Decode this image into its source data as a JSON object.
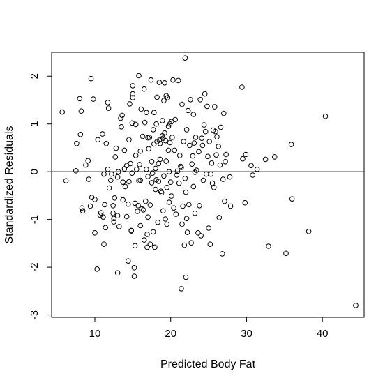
{
  "chart_data": {
    "type": "scatter",
    "title": "",
    "xlabel": "Predicted Body Fat",
    "ylabel": "Standardized Residuals",
    "xlim": [
      4.3,
      45.5
    ],
    "ylim": [
      -3.05,
      2.5
    ],
    "xticks": [
      10,
      20,
      30,
      40
    ],
    "yticks": [
      -3,
      -2,
      -1,
      0,
      1,
      2
    ],
    "reference_line": {
      "type": "hline",
      "y": 0
    },
    "grid": false,
    "point_style": "open-circle",
    "colors": {
      "points": "#000000",
      "axes": "#000000",
      "background": "#ffffff"
    },
    "series": [
      {
        "points": [
          [
            5.7,
            1.25
          ],
          [
            6.2,
            -0.19
          ],
          [
            7.5,
            0.02
          ],
          [
            7.6,
            0.59
          ],
          [
            8.0,
            1.53
          ],
          [
            8.1,
            0.78
          ],
          [
            8.2,
            1.27
          ],
          [
            8.3,
            -0.76
          ],
          [
            8.4,
            -0.82
          ],
          [
            8.8,
            0.14
          ],
          [
            9.1,
            0.23
          ],
          [
            9.2,
            -0.16
          ],
          [
            9.4,
            -0.72
          ],
          [
            9.5,
            1.95
          ],
          [
            9.6,
            -0.54
          ],
          [
            9.8,
            1.52
          ],
          [
            10.0,
            -0.58
          ],
          [
            10.0,
            -1.28
          ],
          [
            10.3,
            -2.04
          ],
          [
            10.4,
            0.67
          ],
          [
            10.7,
            -0.91
          ],
          [
            10.8,
            -0.86
          ],
          [
            11.0,
            0.79
          ],
          [
            11.1,
            -0.95
          ],
          [
            11.2,
            -0.05
          ],
          [
            11.2,
            -1.52
          ],
          [
            11.3,
            -0.69
          ],
          [
            11.4,
            -1.17
          ],
          [
            11.5,
            0.59
          ],
          [
            11.7,
            0.05
          ],
          [
            11.7,
            1.45
          ],
          [
            11.8,
            1.33
          ],
          [
            11.9,
            -0.34
          ],
          [
            12.1,
            -0.18
          ],
          [
            12.2,
            -0.05
          ],
          [
            12.4,
            -0.71
          ],
          [
            12.4,
            -0.87
          ],
          [
            12.5,
            -0.98
          ],
          [
            12.5,
            -1.05
          ],
          [
            12.6,
            -0.55
          ],
          [
            12.7,
            0.31
          ],
          [
            12.8,
            0.49
          ],
          [
            13.0,
            -0.11
          ],
          [
            13.0,
            -2.12
          ],
          [
            13.0,
            -0.92
          ],
          [
            13.1,
            0.0
          ],
          [
            13.2,
            -1.15
          ],
          [
            13.4,
            1.12
          ],
          [
            13.5,
            0.94
          ],
          [
            13.6,
            1.18
          ],
          [
            13.7,
            -0.22
          ],
          [
            13.7,
            -0.59
          ],
          [
            13.9,
            0.45
          ],
          [
            13.9,
            0.06
          ],
          [
            14.0,
            -0.31
          ],
          [
            14.2,
            0.13
          ],
          [
            14.2,
            -0.94
          ],
          [
            14.4,
            -0.68
          ],
          [
            14.4,
            -1.87
          ],
          [
            14.5,
            -0.21
          ],
          [
            14.5,
            0.67
          ],
          [
            14.6,
            1.42
          ],
          [
            14.7,
            0.17
          ],
          [
            14.8,
            -1.23
          ],
          [
            14.8,
            -1.24
          ],
          [
            14.9,
            -0.03
          ],
          [
            14.9,
            1.02
          ],
          [
            15.0,
            1.8
          ],
          [
            15.0,
            1.63
          ],
          [
            15.0,
            1.55
          ],
          [
            15.2,
            -2.01
          ],
          [
            15.2,
            -2.19
          ],
          [
            15.3,
            -0.66
          ],
          [
            15.3,
            -1.55
          ],
          [
            15.4,
            0.34
          ],
          [
            15.4,
            0.99
          ],
          [
            15.5,
            0.05
          ],
          [
            15.6,
            -0.83
          ],
          [
            15.7,
            -0.71
          ],
          [
            15.8,
            2.01
          ],
          [
            15.8,
            -0.19
          ],
          [
            15.9,
            0.15
          ],
          [
            16.0,
            -0.18
          ],
          [
            16.0,
            -1.13
          ],
          [
            16.0,
            0.43
          ],
          [
            16.1,
            1.31
          ],
          [
            16.2,
            -0.78
          ],
          [
            16.3,
            0.74
          ],
          [
            16.4,
            -0.8
          ],
          [
            16.5,
            1.73
          ],
          [
            16.5,
            -1.43
          ],
          [
            16.6,
            1.03
          ],
          [
            16.7,
            -0.62
          ],
          [
            16.8,
            0.05
          ],
          [
            16.8,
            1.24
          ],
          [
            16.9,
            -1.31
          ],
          [
            16.9,
            -1.58
          ],
          [
            17.0,
            0.71
          ],
          [
            17.0,
            -0.1
          ],
          [
            17.0,
            -0.95
          ],
          [
            17.1,
            0.48
          ],
          [
            17.2,
            0.72
          ],
          [
            17.3,
            -1.52
          ],
          [
            17.3,
            -0.7
          ],
          [
            17.4,
            1.92
          ],
          [
            17.5,
            -0.23
          ],
          [
            17.5,
            0.21
          ],
          [
            17.6,
            -0.03
          ],
          [
            17.7,
            0.88
          ],
          [
            17.7,
            -1.26
          ],
          [
            17.8,
            1.24
          ],
          [
            17.8,
            0.58
          ],
          [
            17.9,
            -1.58
          ],
          [
            18.0,
            0.07
          ],
          [
            18.0,
            -0.37
          ],
          [
            18.1,
            -0.17
          ],
          [
            18.1,
            1.0
          ],
          [
            18.2,
            0.63
          ],
          [
            18.2,
            1.56
          ],
          [
            18.3,
            -1.06
          ],
          [
            18.4,
            -0.2
          ],
          [
            18.4,
            0.17
          ],
          [
            18.5,
            0.66
          ],
          [
            18.5,
            1.87
          ],
          [
            18.6,
            0.26
          ],
          [
            18.6,
            0.59
          ],
          [
            18.7,
            -0.41
          ],
          [
            18.8,
            -0.44
          ],
          [
            18.9,
            1.07
          ],
          [
            18.9,
            0.75
          ],
          [
            19.0,
            0.7
          ],
          [
            19.0,
            -0.82
          ],
          [
            19.1,
            1.49
          ],
          [
            19.1,
            -0.09
          ],
          [
            19.2,
            1.86
          ],
          [
            19.2,
            0.81
          ],
          [
            19.3,
            0.65
          ],
          [
            19.3,
            -0.99
          ],
          [
            19.4,
            1.59
          ],
          [
            19.4,
            0.22
          ],
          [
            19.5,
            -0.33
          ],
          [
            19.5,
            -1.1
          ],
          [
            19.6,
            1.55
          ],
          [
            19.7,
            0.45
          ],
          [
            19.7,
            0.95
          ],
          [
            19.8,
            0.0
          ],
          [
            19.8,
            -0.64
          ],
          [
            19.9,
            1.0
          ],
          [
            19.9,
            0.61
          ],
          [
            20.0,
            -0.22
          ],
          [
            20.1,
            1.05
          ],
          [
            20.1,
            -0.51
          ],
          [
            20.2,
            0.72
          ],
          [
            20.3,
            1.92
          ],
          [
            20.4,
            -0.76
          ],
          [
            20.5,
            0.45
          ],
          [
            20.6,
            1.09
          ],
          [
            20.7,
            -0.89
          ],
          [
            20.8,
            -0.07
          ],
          [
            20.9,
            0.01
          ],
          [
            21.0,
            1.91
          ],
          [
            21.1,
            -0.24
          ],
          [
            21.2,
            0.34
          ],
          [
            21.3,
            0.11
          ],
          [
            21.4,
            -2.45
          ],
          [
            21.4,
            0.09
          ],
          [
            21.5,
            -1.1
          ],
          [
            21.5,
            1.41
          ],
          [
            21.6,
            -0.72
          ],
          [
            21.7,
            0.63
          ],
          [
            21.8,
            -1.54
          ],
          [
            21.9,
            -0.14
          ],
          [
            21.9,
            2.38
          ],
          [
            22.0,
            -2.21
          ],
          [
            22.0,
            -0.43
          ],
          [
            22.1,
            -0.98
          ],
          [
            22.1,
            0.88
          ],
          [
            22.2,
            -1.27
          ],
          [
            22.3,
            1.28
          ],
          [
            22.4,
            -0.69
          ],
          [
            22.5,
            0.55
          ],
          [
            22.6,
            1.51
          ],
          [
            22.7,
            -1.49
          ],
          [
            22.8,
            0.16
          ],
          [
            22.9,
            0.33
          ],
          [
            23.0,
            1.2
          ],
          [
            23.0,
            -0.31
          ],
          [
            23.1,
            0.6
          ],
          [
            23.2,
            -0.87
          ],
          [
            23.2,
            -0.01
          ],
          [
            23.3,
            0.72
          ],
          [
            23.4,
            0.03
          ],
          [
            23.6,
            -1.28
          ],
          [
            23.7,
            0.42
          ],
          [
            23.8,
            -0.71
          ],
          [
            23.9,
            1.51
          ],
          [
            24.0,
            -1.34
          ],
          [
            24.1,
            0.7
          ],
          [
            24.2,
            0.55
          ],
          [
            24.3,
            -0.18
          ],
          [
            24.4,
            0.98
          ],
          [
            24.5,
            1.63
          ],
          [
            24.6,
            0.84
          ],
          [
            24.7,
            -0.05
          ],
          [
            24.8,
            1.37
          ],
          [
            24.9,
            0.32
          ],
          [
            25.0,
            -1.18
          ],
          [
            25.1,
            0.63
          ],
          [
            25.2,
            -1.52
          ],
          [
            25.3,
            -0.05
          ],
          [
            25.4,
            0.18
          ],
          [
            25.5,
            -0.24
          ],
          [
            25.6,
            0.87
          ],
          [
            25.7,
            -0.33
          ],
          [
            25.8,
            1.36
          ],
          [
            25.9,
            0.84
          ],
          [
            26.0,
            0.35
          ],
          [
            26.1,
            0.73
          ],
          [
            26.3,
            0.53
          ],
          [
            26.4,
            -0.96
          ],
          [
            26.5,
            0.14
          ],
          [
            26.6,
            0.93
          ],
          [
            26.8,
            -1.72
          ],
          [
            26.9,
            -0.16
          ],
          [
            27.0,
            1.22
          ],
          [
            27.1,
            -0.62
          ],
          [
            27.2,
            0.21
          ],
          [
            27.3,
            0.36
          ],
          [
            27.8,
            -0.11
          ],
          [
            27.9,
            -0.72
          ],
          [
            29.4,
            1.77
          ],
          [
            29.5,
            0.27
          ],
          [
            29.8,
            -0.65
          ],
          [
            29.9,
            0.36
          ],
          [
            30.6,
            0.13
          ],
          [
            30.8,
            -0.07
          ],
          [
            31.4,
            0.05
          ],
          [
            32.5,
            0.26
          ],
          [
            32.9,
            -1.56
          ],
          [
            33.7,
            0.31
          ],
          [
            35.2,
            -1.71
          ],
          [
            35.9,
            0.57
          ],
          [
            36.0,
            -0.57
          ],
          [
            38.2,
            -1.25
          ],
          [
            40.4,
            1.16
          ],
          [
            44.4,
            -2.8
          ]
        ]
      }
    ]
  }
}
